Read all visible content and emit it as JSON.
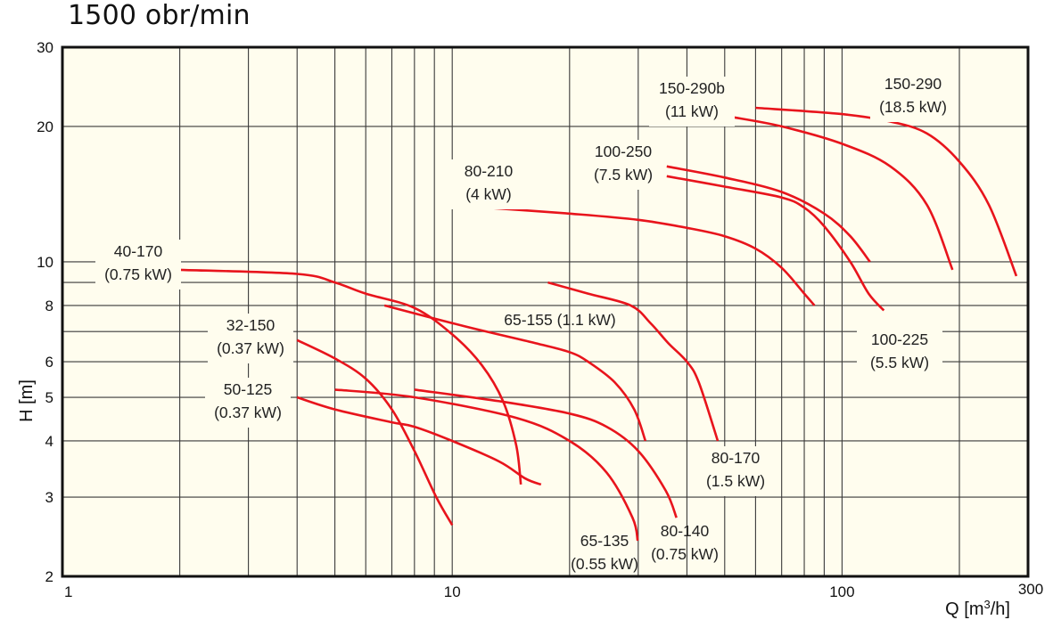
{
  "title": "1500 obr/min",
  "chart_data": {
    "type": "line",
    "title": "1500 obr/min",
    "xlabel": "Q [m³/h]",
    "ylabel": "H [m]",
    "xscale": "log",
    "yscale": "log",
    "xlim": [
      1,
      300
    ],
    "ylim": [
      2,
      30
    ],
    "grid": true,
    "x_gridlines": [
      2,
      3,
      4,
      5,
      6,
      7,
      8,
      9,
      10,
      20,
      30,
      40,
      50,
      60,
      70,
      80,
      90,
      100,
      200
    ],
    "y_gridlines": [
      3,
      4,
      5,
      6,
      7,
      8,
      9,
      10,
      20
    ],
    "x_tick_labels": [
      {
        "value": 1,
        "text": "1"
      },
      {
        "value": 10,
        "text": "10"
      },
      {
        "value": 100,
        "text": "100"
      },
      {
        "value": 300,
        "text": "300"
      }
    ],
    "y_tick_labels": [
      {
        "value": 30,
        "text": "30"
      },
      {
        "value": 20,
        "text": "20"
      },
      {
        "value": 10,
        "text": "10"
      },
      {
        "value": 8,
        "text": "8"
      },
      {
        "value": 6,
        "text": "6"
      },
      {
        "value": 5,
        "text": "5"
      },
      {
        "value": 4,
        "text": "4"
      },
      {
        "value": 3,
        "text": "3"
      },
      {
        "value": 2,
        "text": "2"
      }
    ],
    "series_color": "#e8141c",
    "plot_background": "#fffdee",
    "series": [
      {
        "name": "40-170",
        "power": "(0.75 kW)",
        "x": [
          2.0,
          4.0,
          5.0,
          6.0,
          8.0,
          10.0,
          11.9,
          13.5,
          14.6,
          15.0
        ],
        "y": [
          9.6,
          9.4,
          9.0,
          8.5,
          7.9,
          6.9,
          5.9,
          4.9,
          3.9,
          3.2
        ]
      },
      {
        "name": "32-150",
        "power": "(0.37 kW)",
        "x": [
          4.0,
          5.0,
          6.0,
          7.0,
          8.0,
          9.1,
          10.0
        ],
        "y": [
          6.7,
          6.1,
          5.5,
          4.7,
          3.8,
          3.0,
          2.6
        ]
      },
      {
        "name": "50-125",
        "power": "(0.37 kW)",
        "x": [
          4.0,
          5.0,
          7.0,
          8.0,
          10.0,
          13.2,
          15.4,
          16.9
        ],
        "y": [
          5.0,
          4.7,
          4.4,
          4.3,
          4.0,
          3.6,
          3.3,
          3.2
        ]
      },
      {
        "name": "65-135",
        "power": "(0.55 kW)",
        "x": [
          5.0,
          8.0,
          14.6,
          20.0,
          24.9,
          29.0,
          29.9
        ],
        "y": [
          5.2,
          5.0,
          4.5,
          4.0,
          3.4,
          2.7,
          2.4
        ]
      },
      {
        "name": "80-140",
        "power": "(0.75 kW)",
        "x": [
          8.0,
          13.2,
          20.0,
          24.9,
          30.0,
          35.3,
          37.6
        ],
        "y": [
          5.2,
          4.9,
          4.6,
          4.3,
          3.8,
          3.1,
          2.7
        ]
      },
      {
        "name": "65-155",
        "power": "(1.1 kW)",
        "x": [
          6.7,
          10.7,
          16.3,
          20.0,
          22.3,
          26.1,
          29.3,
          31.3
        ],
        "y": [
          8.0,
          7.2,
          6.6,
          6.3,
          6.0,
          5.4,
          4.7,
          4.0
        ]
      },
      {
        "name": "80-170",
        "power": "(1.5 kW)",
        "x": [
          17.6,
          22.3,
          28.7,
          32.3,
          35.8,
          40.0,
          42.9,
          48.0
        ],
        "y": [
          9.0,
          8.5,
          8.0,
          7.3,
          6.6,
          6.0,
          5.4,
          4.0
        ]
      },
      {
        "name": "80-210",
        "power": "(4 kW)",
        "x": [
          12.2,
          20.0,
          30.0,
          40.0,
          50.0,
          60.0,
          70.0,
          80.0,
          85.0
        ],
        "y": [
          13.2,
          12.8,
          12.4,
          11.9,
          11.4,
          10.7,
          9.7,
          8.5,
          8.0
        ]
      },
      {
        "name": "100-250",
        "power": "(7.5 kW)",
        "x": [
          35.5,
          50.0,
          70.0,
          90.0,
          105.0,
          118.0
        ],
        "y": [
          16.3,
          15.4,
          14.3,
          12.8,
          11.4,
          10.0
        ]
      },
      {
        "name": "100-225",
        "power": "(5.5 kW)",
        "x": [
          35.5,
          50.0,
          70.0,
          80.0,
          90.0,
          105.0,
          117.0,
          128.0
        ],
        "y": [
          15.5,
          14.7,
          13.9,
          13.2,
          12.0,
          10.0,
          8.5,
          7.8
        ]
      },
      {
        "name": "150-290b",
        "power": "(11 kW)",
        "x": [
          51.9,
          70.0,
          100.0,
          133.0,
          165.0,
          192.0
        ],
        "y": [
          21.0,
          20.0,
          18.3,
          16.3,
          13.4,
          9.6
        ]
      },
      {
        "name": "150-290",
        "power": "(18.5 kW)",
        "x": [
          60.0,
          100.0,
          133.0,
          165.0,
          200.0,
          238.0,
          280.0
        ],
        "y": [
          22.0,
          21.3,
          20.5,
          19.3,
          16.7,
          13.4,
          9.3
        ]
      }
    ]
  }
}
